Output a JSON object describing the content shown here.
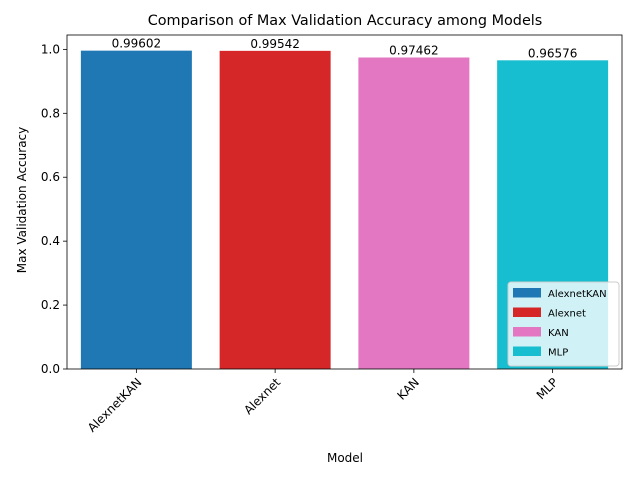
{
  "chart_data": {
    "type": "bar",
    "title": "Comparison of Max Validation Accuracy among Models",
    "xlabel": "Model",
    "ylabel": "Max Validation Accuracy",
    "categories": [
      "AlexnetKAN",
      "Alexnet",
      "KAN",
      "MLP"
    ],
    "values": [
      0.99602,
      0.99542,
      0.97462,
      0.96576
    ],
    "value_labels": [
      "0.99602",
      "0.99542",
      "0.97462",
      "0.96576"
    ],
    "colors": [
      "#1f77b4",
      "#d62728",
      "#e377c2",
      "#17becf"
    ],
    "ylim": [
      0,
      1.045
    ],
    "yticks": [
      0.0,
      0.2,
      0.4,
      0.6,
      0.8,
      1.0
    ],
    "ytick_labels": [
      "0.0",
      "0.2",
      "0.4",
      "0.6",
      "0.8",
      "1.0"
    ],
    "xtick_rotation": 45,
    "grid": false,
    "legend": {
      "placement": "lower-right",
      "entries": [
        "AlexnetKAN",
        "Alexnet",
        "KAN",
        "MLP"
      ]
    }
  }
}
